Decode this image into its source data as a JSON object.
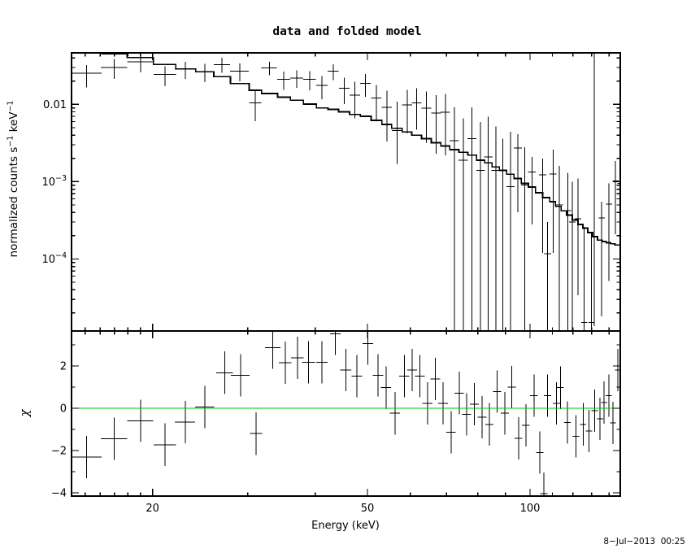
{
  "title": "data and folded model",
  "timestamp": "8−Jul−2013  00:25",
  "chart_data": {
    "type": "line",
    "description": "XSPEC two-panel spectral plot: data with error bars plus folded model histogram (top, log-log), chi residuals (bottom, semilog-x)",
    "x_axis": {
      "label": "Energy (keV)",
      "scale": "log",
      "min": 14.16,
      "max": 146.9,
      "major_ticks": [
        {
          "v": 20,
          "label": "20"
        },
        {
          "v": 50,
          "label": "50"
        },
        {
          "v": 100,
          "label": "100"
        }
      ],
      "minor_ticks": [
        15,
        16,
        17,
        18,
        19,
        30,
        40,
        60,
        70,
        80,
        90,
        110,
        120,
        130,
        140
      ]
    },
    "top_panel": {
      "ylabel_parts": {
        "pre": "normalized counts s",
        "sup1": "−1",
        "mid": " keV",
        "sup2": "−1"
      },
      "scale": "log",
      "min": 1.17e-05,
      "max": 0.0464,
      "major_ticks": [
        {
          "v": 0.01,
          "base": "0.01",
          "sup": ""
        },
        {
          "v": 0.001,
          "base": "10",
          "sup": "−3"
        },
        {
          "v": 0.0001,
          "base": "10",
          "sup": "−4"
        }
      ],
      "model_edges": [
        14.16,
        16.12,
        17.94,
        20.08,
        22.09,
        24.04,
        25.98,
        27.87,
        30.2,
        31.84,
        34.08,
        36.01,
        38.06,
        40.22,
        42.24,
        44.23,
        46.31,
        48.5,
        50.77,
        53.15,
        55.42,
        57.97,
        60.42,
        62.96,
        65.61,
        68.37,
        71.0,
        73.8,
        76.7,
        79.6,
        82.45,
        85.05,
        87.74,
        90.5,
        93.37,
        96.32,
        99.3,
        102.35,
        105.5,
        108.74,
        111.41,
        114.13,
        116.92,
        119.77,
        122.7,
        125.3,
        127.9,
        130.6,
        133.35,
        135.88,
        138.4,
        141.0,
        143.6,
        146.9
      ],
      "model_values": [
        0.0462,
        0.045,
        0.0403,
        0.0329,
        0.0288,
        0.0264,
        0.0228,
        0.0186,
        0.0152,
        0.0138,
        0.0124,
        0.0113,
        0.0101,
        0.009,
        0.0086,
        0.008,
        0.0074,
        0.007,
        0.0062,
        0.0055,
        0.0049,
        0.0044,
        0.004,
        0.0036,
        0.0032,
        0.0029,
        0.0026,
        0.0024,
        0.0022,
        0.0019,
        0.00175,
        0.00155,
        0.0014,
        0.00125,
        0.0011,
        0.00095,
        0.00085,
        0.00072,
        0.00062,
        0.00055,
        0.00048,
        0.00042,
        0.00037,
        0.00032,
        0.00028,
        0.00025,
        0.00022,
        0.000195,
        0.000175,
        0.000168,
        0.000162,
        0.000157,
        0.000152
      ],
      "points": [
        {
          "e": 15.1,
          "w": 1.0,
          "v": 0.0253,
          "hi": 0.0322,
          "lo": 0.0165
        },
        {
          "e": 17.0,
          "w": 0.95,
          "v": 0.03,
          "hi": 0.0385,
          "lo": 0.0215
        },
        {
          "e": 19.0,
          "w": 1.05,
          "v": 0.0355,
          "hi": 0.045,
          "lo": 0.0258
        },
        {
          "e": 21.1,
          "w": 1.0,
          "v": 0.0243,
          "hi": 0.0313,
          "lo": 0.0172
        },
        {
          "e": 23.0,
          "w": 1.0,
          "v": 0.0286,
          "hi": 0.0355,
          "lo": 0.0215
        },
        {
          "e": 25.0,
          "w": 1.0,
          "v": 0.0265,
          "hi": 0.0336,
          "lo": 0.0194
        },
        {
          "e": 26.9,
          "w": 0.95,
          "v": 0.0328,
          "hi": 0.0399,
          "lo": 0.0257
        },
        {
          "e": 29.0,
          "w": 1.15,
          "v": 0.0268,
          "hi": 0.0338,
          "lo": 0.0198
        },
        {
          "e": 31.0,
          "w": 0.8,
          "v": 0.0105,
          "hi": 0.015,
          "lo": 0.0061
        },
        {
          "e": 32.9,
          "w": 1.1,
          "v": 0.0297,
          "hi": 0.0357,
          "lo": 0.0237
        },
        {
          "e": 35.0,
          "w": 0.95,
          "v": 0.021,
          "hi": 0.0265,
          "lo": 0.0155
        },
        {
          "e": 37.0,
          "w": 1.0,
          "v": 0.0219,
          "hi": 0.0275,
          "lo": 0.0163
        },
        {
          "e": 39.1,
          "w": 1.05,
          "v": 0.021,
          "hi": 0.0268,
          "lo": 0.0152
        },
        {
          "e": 41.2,
          "w": 1.0,
          "v": 0.0175,
          "hi": 0.0234,
          "lo": 0.0116
        },
        {
          "e": 43.2,
          "w": 1.0,
          "v": 0.0268,
          "hi": 0.0331,
          "lo": 0.0205
        },
        {
          "e": 45.3,
          "w": 1.05,
          "v": 0.0161,
          "hi": 0.0221,
          "lo": 0.0101
        },
        {
          "e": 47.4,
          "w": 1.05,
          "v": 0.0131,
          "hi": 0.0196,
          "lo": 0.0066
        },
        {
          "e": 49.6,
          "w": 1.1,
          "v": 0.0186,
          "hi": 0.0247,
          "lo": 0.0125
        },
        {
          "e": 51.9,
          "w": 1.15,
          "v": 0.0121,
          "hi": 0.0179,
          "lo": 0.0063
        },
        {
          "e": 54.3,
          "w": 1.2,
          "v": 0.0092,
          "hi": 0.0151,
          "lo": 0.0033
        },
        {
          "e": 56.7,
          "w": 1.2,
          "v": 0.0046,
          "hi": 0.0108,
          "lo": 0.0017
        },
        {
          "e": 59.2,
          "w": 1.25,
          "v": 0.0098,
          "hi": 0.0154,
          "lo": 0.0042
        },
        {
          "e": 61.7,
          "w": 1.3,
          "v": 0.0104,
          "hi": 0.0161,
          "lo": 0.0047
        },
        {
          "e": 64.3,
          "w": 1.3,
          "v": 0.0089,
          "hi": 0.0146,
          "lo": 0.0032
        },
        {
          "e": 67.0,
          "w": 1.4,
          "v": 0.0077,
          "hi": 0.0131,
          "lo": 0.0023
        },
        {
          "e": 69.7,
          "w": 1.4,
          "v": 0.0079,
          "hi": 0.0136,
          "lo": 0.0022
        },
        {
          "e": 72.4,
          "w": 1.4,
          "v": 0.0034,
          "hi": 0.0091,
          "lo": null
        },
        {
          "e": 75.2,
          "w": 1.5,
          "v": 0.0019,
          "hi": 0.0066,
          "lo": null
        },
        {
          "e": 78.1,
          "w": 1.5,
          "v": 0.0036,
          "hi": 0.0092,
          "lo": null
        },
        {
          "e": 81.0,
          "w": 1.5,
          "v": 0.0014,
          "hi": 0.0059,
          "lo": null
        },
        {
          "e": 83.7,
          "w": 1.5,
          "v": 0.0021,
          "hi": 0.0069,
          "lo": null
        },
        {
          "e": 86.4,
          "w": 1.55,
          "v": 0.0014,
          "hi": 0.0052,
          "lo": null
        },
        {
          "e": 89.1,
          "w": 1.55,
          "v": 0.00138,
          "hi": 0.0036,
          "lo": null
        },
        {
          "e": 92.0,
          "w": 1.6,
          "v": 0.00086,
          "hi": 0.0044,
          "lo": null
        },
        {
          "e": 94.9,
          "w": 1.6,
          "v": 0.00274,
          "hi": 0.0041,
          "lo": 0.0004
        },
        {
          "e": 97.8,
          "w": 1.6,
          "v": 0.0009,
          "hi": 0.0028,
          "lo": null
        },
        {
          "e": 100.8,
          "w": 1.65,
          "v": 0.00133,
          "hi": 0.0021,
          "lo": 0.00028
        },
        {
          "e": 105.5,
          "w": 1.65,
          "v": 0.00123,
          "hi": 0.002,
          "lo": 0.00012
        },
        {
          "e": 107.8,
          "w": 1.65,
          "v": 0.000117,
          "hi": 0.0003,
          "lo": null
        },
        {
          "e": 110.3,
          "w": 1.7,
          "v": 0.00125,
          "hi": 0.0026,
          "lo": 0.00012
        },
        {
          "e": 113.3,
          "w": 1.7,
          "v": 0.0005,
          "hi": 0.0016,
          "lo": null
        },
        {
          "e": 117.5,
          "w": 1.7,
          "v": 0.00042,
          "hi": 0.0013,
          "lo": null
        },
        {
          "e": 119.8,
          "w": 1.7,
          "v": 0.0003,
          "hi": 0.001,
          "lo": null
        },
        {
          "e": 122.6,
          "w": 1.7,
          "v": 0.00033,
          "hi": 0.0011,
          "lo": 3.4e-05
        },
        {
          "e": 126.0,
          "w": 1.7,
          "v": 1.5e-05,
          "hi": 0.00026,
          "lo": null
        },
        {
          "e": 130.0,
          "w": 1.75,
          "v": 1.5e-05,
          "hi": 0.00022,
          "lo": null
        },
        {
          "e": 135.7,
          "w": 1.75,
          "v": 0.00034,
          "hi": 0.00055,
          "lo": 1.8e-05
        },
        {
          "e": 140.0,
          "w": 1.8,
          "v": 0.00051,
          "hi": 0.00095,
          "lo": 5.2e-05
        },
        {
          "e": 144.0,
          "w": 1.8,
          "v": 0.00102,
          "hi": 0.00184,
          "lo": 0.00021
        },
        {
          "e": 147.0,
          "w": 1.8,
          "v": 0.00095,
          "hi": 0.0018,
          "lo": 0.0002
        }
      ],
      "tall_bar": {
        "e": 131.5,
        "hi": 0.0464,
        "lo": 1.35e-05
      }
    },
    "bottom_panel": {
      "ylabel": "χ",
      "scale": "linear",
      "min": -4.15,
      "max": 3.65,
      "major_ticks": [
        {
          "v": -4,
          "label": "−4"
        },
        {
          "v": -2,
          "label": "−2"
        },
        {
          "v": 0,
          "label": "0"
        },
        {
          "v": 2,
          "label": "2"
        }
      ],
      "minor_ticks": [
        -3,
        -1,
        1,
        3
      ],
      "error_halfheight": 1.0,
      "zero_line_color": "#00c800",
      "points": [
        {
          "e": 15.1,
          "w": 1.0,
          "chi": -2.3
        },
        {
          "e": 17.0,
          "w": 0.95,
          "chi": -1.44
        },
        {
          "e": 19.0,
          "w": 1.05,
          "chi": -0.6
        },
        {
          "e": 21.1,
          "w": 1.0,
          "chi": -1.72
        },
        {
          "e": 23.0,
          "w": 1.0,
          "chi": -0.65
        },
        {
          "e": 25.0,
          "w": 1.0,
          "chi": 0.05
        },
        {
          "e": 27.2,
          "w": 0.95,
          "chi": 1.68
        },
        {
          "e": 29.1,
          "w": 1.15,
          "chi": 1.56
        },
        {
          "e": 31.1,
          "w": 0.8,
          "chi": -1.2
        },
        {
          "e": 33.4,
          "w": 1.1,
          "chi": 2.87
        },
        {
          "e": 35.2,
          "w": 0.95,
          "chi": 2.15
        },
        {
          "e": 37.1,
          "w": 1.0,
          "chi": 2.38
        },
        {
          "e": 38.9,
          "w": 1.05,
          "chi": 2.17
        },
        {
          "e": 41.2,
          "w": 1.0,
          "chi": 2.17
        },
        {
          "e": 43.6,
          "w": 1.0,
          "chi": 3.51
        },
        {
          "e": 45.6,
          "w": 1.05,
          "chi": 1.81
        },
        {
          "e": 47.8,
          "w": 1.05,
          "chi": 1.51
        },
        {
          "e": 50.1,
          "w": 1.1,
          "chi": 3.05
        },
        {
          "e": 52.3,
          "w": 1.15,
          "chi": 1.55
        },
        {
          "e": 54.1,
          "w": 1.2,
          "chi": 0.97
        },
        {
          "e": 56.2,
          "w": 1.2,
          "chi": -0.24
        },
        {
          "e": 58.5,
          "w": 1.25,
          "chi": 1.51
        },
        {
          "e": 60.5,
          "w": 1.3,
          "chi": 1.81
        },
        {
          "e": 62.5,
          "w": 1.3,
          "chi": 1.51
        },
        {
          "e": 64.6,
          "w": 1.4,
          "chi": 0.23
        },
        {
          "e": 66.8,
          "w": 1.4,
          "chi": 1.38
        },
        {
          "e": 69.0,
          "w": 1.4,
          "chi": 0.23
        },
        {
          "e": 71.4,
          "w": 1.4,
          "chi": -1.14
        },
        {
          "e": 73.9,
          "w": 1.5,
          "chi": 0.72
        },
        {
          "e": 76.3,
          "w": 1.5,
          "chi": -0.28
        },
        {
          "e": 78.9,
          "w": 1.5,
          "chi": 0.2
        },
        {
          "e": 81.5,
          "w": 1.5,
          "chi": -0.43
        },
        {
          "e": 84.1,
          "w": 1.5,
          "chi": -0.76
        },
        {
          "e": 86.9,
          "w": 1.55,
          "chi": 0.78
        },
        {
          "e": 89.8,
          "w": 1.55,
          "chi": -0.24
        },
        {
          "e": 92.5,
          "w": 1.6,
          "chi": 1.0
        },
        {
          "e": 95.2,
          "w": 1.6,
          "chi": -1.43
        },
        {
          "e": 98.2,
          "w": 1.6,
          "chi": -0.8
        },
        {
          "e": 101.7,
          "w": 1.65,
          "chi": 0.59
        },
        {
          "e": 104.3,
          "w": 1.65,
          "chi": -2.1
        },
        {
          "e": 106.0,
          "w": 1.65,
          "chi": -4.03
        },
        {
          "e": 107.7,
          "w": 1.65,
          "chi": 0.59
        },
        {
          "e": 111.9,
          "w": 1.7,
          "chi": 0.23
        },
        {
          "e": 113.8,
          "w": 1.7,
          "chi": 0.97
        },
        {
          "e": 117.3,
          "w": 1.7,
          "chi": -0.67
        },
        {
          "e": 121.6,
          "w": 1.7,
          "chi": -1.33
        },
        {
          "e": 125.4,
          "w": 1.7,
          "chi": -0.76
        },
        {
          "e": 128.6,
          "w": 1.75,
          "chi": -1.08
        },
        {
          "e": 131.7,
          "w": 1.75,
          "chi": -0.12
        },
        {
          "e": 134.8,
          "w": 1.75,
          "chi": -0.5
        },
        {
          "e": 137.1,
          "w": 1.8,
          "chi": 0.27
        },
        {
          "e": 139.9,
          "w": 1.8,
          "chi": 0.59
        },
        {
          "e": 142.4,
          "w": 1.8,
          "chi": -0.69
        },
        {
          "e": 145.5,
          "w": 1.8,
          "chi": 1.81
        }
      ]
    }
  }
}
